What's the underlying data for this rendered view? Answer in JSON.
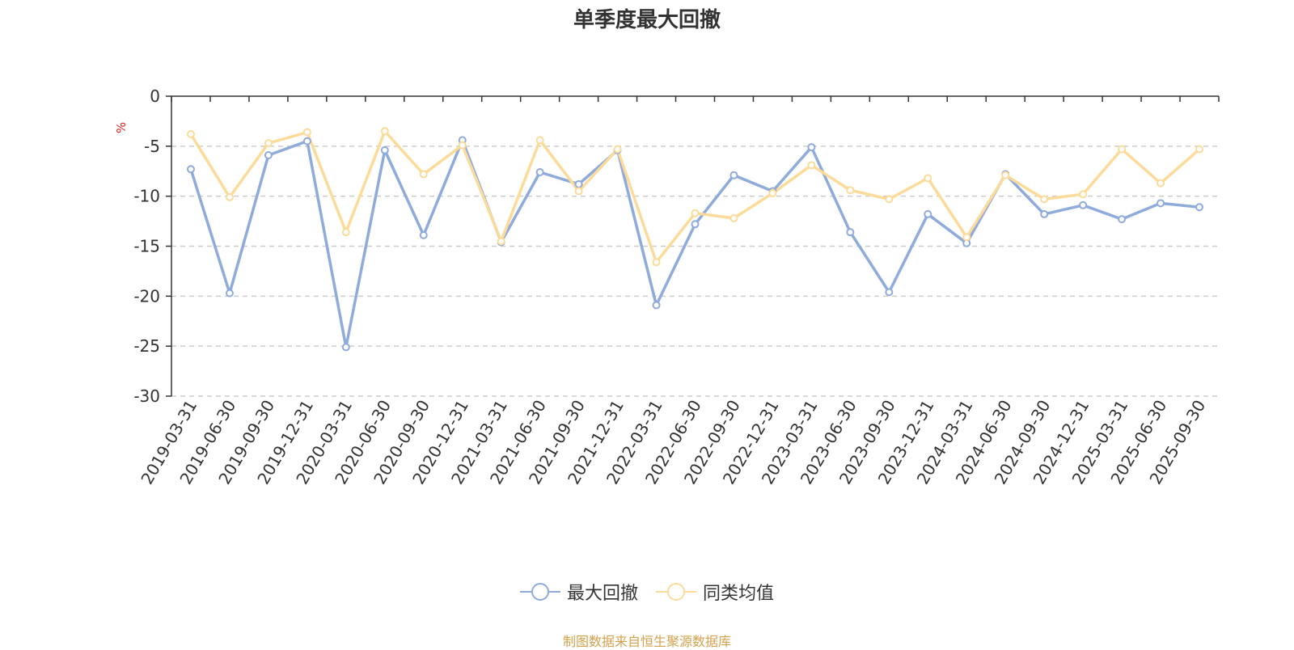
{
  "chart_data": {
    "type": "line",
    "title": "单季度最大回撤",
    "ylabel": "%",
    "ylim": [
      -30,
      0
    ],
    "yticks": [
      0,
      -5,
      -10,
      -15,
      -20,
      -25,
      -30
    ],
    "grid": true,
    "legend_position": "bottom",
    "categories": [
      "2019-03-31",
      "2019-06-30",
      "2019-09-30",
      "2019-12-31",
      "2020-03-31",
      "2020-06-30",
      "2020-09-30",
      "2020-12-31",
      "2021-03-31",
      "2021-06-30",
      "2021-09-30",
      "2021-12-31",
      "2022-03-31",
      "2022-06-30",
      "2022-09-30",
      "2022-12-31",
      "2023-03-31",
      "2023-06-30",
      "2023-09-30",
      "2023-12-31",
      "2024-03-31",
      "2024-06-30",
      "2024-09-30",
      "2024-12-31",
      "2025-03-31",
      "2025-06-30",
      "2025-09-30"
    ],
    "series": [
      {
        "name": "最大回撤",
        "color": "#8eabdb",
        "values": [
          -7.3,
          -19.7,
          -5.9,
          -4.5,
          -25.1,
          -5.4,
          -13.9,
          -4.4,
          -14.6,
          -7.6,
          -8.8,
          -5.4,
          -20.9,
          -12.8,
          -7.9,
          -9.5,
          -5.1,
          -13.6,
          -19.6,
          -11.8,
          -14.7,
          -7.8,
          -11.8,
          -10.9,
          -12.3,
          -10.7,
          -11.1
        ]
      },
      {
        "name": "同类均值",
        "color": "#fcdb9a",
        "values": [
          -3.8,
          -10.1,
          -4.7,
          -3.6,
          -13.6,
          -3.5,
          -7.8,
          -4.9,
          -14.5,
          -4.4,
          -9.5,
          -5.3,
          -16.6,
          -11.7,
          -12.2,
          -9.7,
          -6.9,
          -9.4,
          -10.3,
          -8.2,
          -14.1,
          -7.9,
          -10.3,
          -9.8,
          -5.3,
          -8.7,
          -5.3
        ]
      }
    ]
  },
  "source_note": "制图数据来自恒生聚源数据库"
}
